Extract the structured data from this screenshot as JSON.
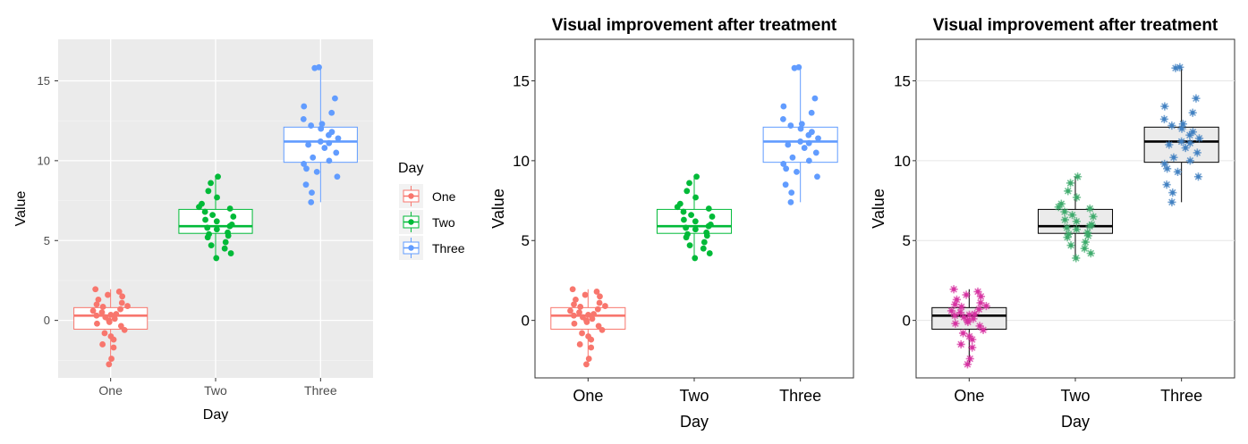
{
  "chart_data": [
    {
      "type": "boxplot",
      "theme": "ggplot-gray",
      "title": "",
      "xlabel": "Day",
      "ylabel": "Value",
      "categories": [
        "One",
        "Two",
        "Three"
      ],
      "ylim": [
        -3.6,
        17.6
      ],
      "yticks": [
        0,
        5,
        10,
        15
      ],
      "legend": {
        "title": "Day",
        "position": "right",
        "entries": [
          "One",
          "Two",
          "Three"
        ]
      },
      "colors": [
        "#F8766D",
        "#00BA38",
        "#619CFF"
      ],
      "boxes": [
        {
          "q1": -0.55,
          "median": 0.3,
          "q3": 0.8,
          "min": -2.75,
          "max": 1.95
        },
        {
          "q1": 5.45,
          "median": 5.9,
          "q3": 6.95,
          "min": 3.9,
          "max": 9.0
        },
        {
          "q1": 9.9,
          "median": 11.2,
          "q3": 12.1,
          "min": 7.4,
          "max": 15.85
        }
      ],
      "points": [
        [
          1.8,
          1.95,
          1.6,
          1.5,
          1.3,
          1.1,
          1.0,
          0.9,
          0.85,
          0.7,
          0.6,
          0.5,
          0.4,
          0.35,
          0.3,
          0.2,
          0.1,
          0.0,
          -0.1,
          -0.2,
          -0.35,
          -0.6,
          -0.8,
          -1.0,
          -1.2,
          -1.5,
          -1.7,
          -2.4,
          -2.75
        ],
        [
          9.0,
          8.6,
          8.1,
          7.7,
          7.3,
          7.1,
          7.0,
          6.8,
          6.6,
          6.5,
          6.3,
          6.2,
          6.0,
          5.9,
          5.8,
          5.7,
          5.5,
          5.4,
          5.3,
          5.2,
          4.9,
          4.7,
          4.5,
          4.2,
          3.9
        ],
        [
          15.85,
          15.8,
          13.9,
          13.4,
          13.0,
          12.6,
          12.3,
          12.2,
          12.0,
          11.8,
          11.6,
          11.4,
          11.2,
          11.1,
          11.0,
          10.8,
          10.5,
          10.2,
          10.0,
          9.8,
          9.5,
          9.3,
          9.0,
          8.5,
          8.0,
          7.4
        ]
      ]
    },
    {
      "type": "boxplot",
      "theme": "bw",
      "title": "Visual improvement after treatment",
      "xlabel": "Day",
      "ylabel": "Value",
      "categories": [
        "One",
        "Two",
        "Three"
      ],
      "ylim": [
        -3.6,
        17.6
      ],
      "yticks": [
        0,
        5,
        10,
        15
      ],
      "colors": [
        "#F8766D",
        "#00BA38",
        "#619CFF"
      ],
      "boxes": [
        {
          "q1": -0.55,
          "median": 0.3,
          "q3": 0.8,
          "min": -2.75,
          "max": 1.95
        },
        {
          "q1": 5.45,
          "median": 5.9,
          "q3": 6.95,
          "min": 3.9,
          "max": 9.0
        },
        {
          "q1": 9.9,
          "median": 11.2,
          "q3": 12.1,
          "min": 7.4,
          "max": 15.85
        }
      ],
      "points": [
        [
          1.8,
          1.95,
          1.6,
          1.5,
          1.3,
          1.1,
          1.0,
          0.9,
          0.85,
          0.7,
          0.6,
          0.5,
          0.4,
          0.35,
          0.3,
          0.2,
          0.1,
          0.0,
          -0.1,
          -0.2,
          -0.35,
          -0.6,
          -0.8,
          -1.0,
          -1.2,
          -1.5,
          -1.7,
          -2.4,
          -2.75
        ],
        [
          9.0,
          8.6,
          8.1,
          7.7,
          7.3,
          7.1,
          7.0,
          6.8,
          6.6,
          6.5,
          6.3,
          6.2,
          6.0,
          5.9,
          5.8,
          5.7,
          5.5,
          5.4,
          5.3,
          5.2,
          4.9,
          4.7,
          4.5,
          4.2,
          3.9
        ],
        [
          15.85,
          15.8,
          13.9,
          13.4,
          13.0,
          12.6,
          12.3,
          12.2,
          12.0,
          11.8,
          11.6,
          11.4,
          11.2,
          11.1,
          11.0,
          10.8,
          10.5,
          10.2,
          10.0,
          9.8,
          9.5,
          9.3,
          9.0,
          8.5,
          8.0,
          7.4
        ]
      ]
    },
    {
      "type": "boxplot",
      "theme": "light-gray-boxes",
      "title": "Visual improvement after treatment",
      "xlabel": "Day",
      "ylabel": "Value",
      "categories": [
        "One",
        "Two",
        "Three"
      ],
      "ylim": [
        -3.6,
        17.6
      ],
      "yticks": [
        0,
        5,
        10,
        15
      ],
      "colors": [
        "#D62FA0",
        "#3BAA6A",
        "#3F7FC0"
      ],
      "boxes": [
        {
          "q1": -0.55,
          "median": 0.3,
          "q3": 0.8,
          "min": -2.75,
          "max": 1.95
        },
        {
          "q1": 5.45,
          "median": 5.9,
          "q3": 6.95,
          "min": 3.9,
          "max": 9.0
        },
        {
          "q1": 9.9,
          "median": 11.2,
          "q3": 12.1,
          "min": 7.4,
          "max": 15.85
        }
      ],
      "points": [
        [
          1.8,
          1.95,
          1.6,
          1.5,
          1.3,
          1.1,
          1.0,
          0.9,
          0.85,
          0.7,
          0.6,
          0.5,
          0.4,
          0.35,
          0.3,
          0.2,
          0.1,
          0.0,
          -0.1,
          -0.2,
          -0.35,
          -0.6,
          -0.8,
          -1.0,
          -1.2,
          -1.5,
          -1.7,
          -2.4,
          -2.75
        ],
        [
          9.0,
          8.6,
          8.1,
          7.7,
          7.3,
          7.1,
          7.0,
          6.8,
          6.6,
          6.5,
          6.3,
          6.2,
          6.0,
          5.9,
          5.8,
          5.7,
          5.5,
          5.4,
          5.3,
          5.2,
          4.9,
          4.7,
          4.5,
          4.2,
          3.9
        ],
        [
          15.85,
          15.8,
          13.9,
          13.4,
          13.0,
          12.6,
          12.3,
          12.2,
          12.0,
          11.8,
          11.6,
          11.4,
          11.2,
          11.1,
          11.0,
          10.8,
          10.5,
          10.2,
          10.0,
          9.8,
          9.5,
          9.3,
          9.0,
          8.5,
          8.0,
          7.4
        ]
      ]
    }
  ]
}
